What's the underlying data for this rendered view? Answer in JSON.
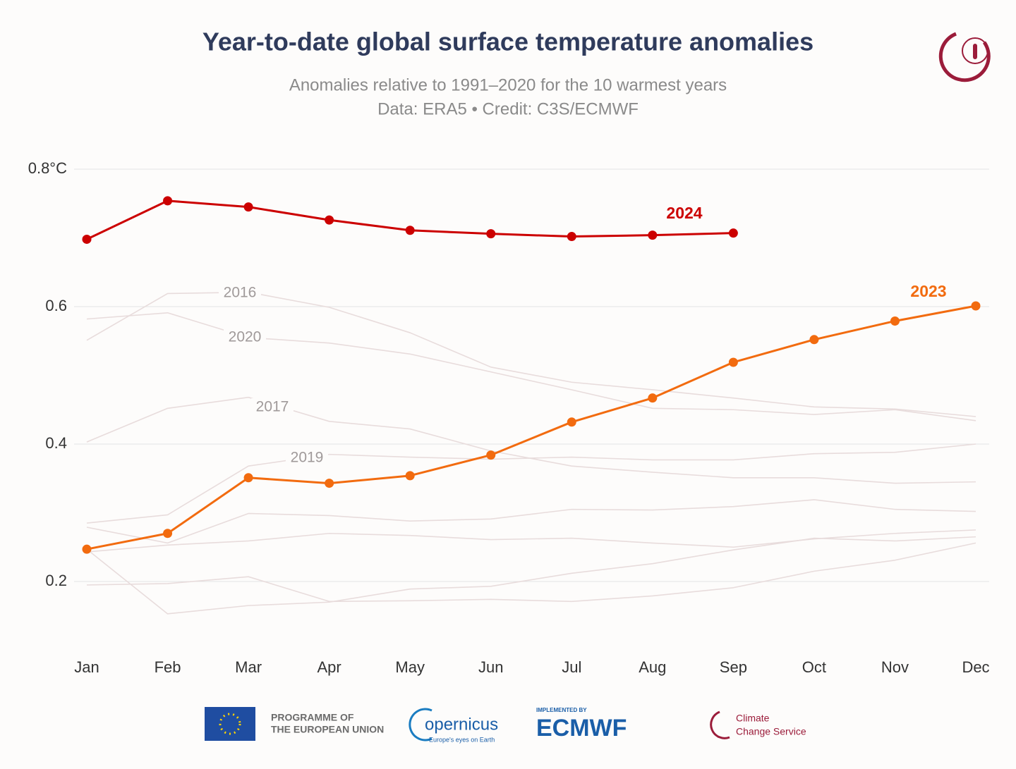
{
  "chart_data": {
    "type": "line",
    "title": "Year-to-date global surface temperature anomalies",
    "subtitle": [
      "Anomalies relative to 1991–2020 for the 10 warmest years",
      "Data: ERA5 • Credit: C3S/ECMWF"
    ],
    "categories": [
      "Jan",
      "Feb",
      "Mar",
      "Apr",
      "May",
      "Jun",
      "Jul",
      "Aug",
      "Sep",
      "Oct",
      "Nov",
      "Dec"
    ],
    "ylim": [
      0.12,
      0.82
    ],
    "yticks": [
      {
        "value": 0.8,
        "label": "0.8°C"
      },
      0.6,
      0.4,
      0.2
    ],
    "grid": true,
    "series": [
      {
        "color": "#e8dcdc",
        "values": [
          0.195,
          0.197,
          0.207,
          0.171,
          0.172,
          0.174,
          0.171,
          0.179,
          0.191,
          0.215,
          0.231,
          0.256
        ]
      },
      {
        "color": "#e8dcdc",
        "values": [
          0.279,
          0.256,
          0.299,
          0.296,
          0.288,
          0.291,
          0.305,
          0.304,
          0.309,
          0.319,
          0.305,
          0.302
        ]
      },
      {
        "color": "#e8dcdc",
        "values": [
          0.243,
          0.253,
          0.259,
          0.27,
          0.267,
          0.261,
          0.263,
          0.256,
          0.25,
          0.262,
          0.27,
          0.275
        ]
      },
      {
        "color": "#e8dcdc",
        "values": [
          0.247,
          0.153,
          0.165,
          0.17,
          0.189,
          0.193,
          0.212,
          0.226,
          0.246,
          0.263,
          0.259,
          0.265
        ]
      },
      {
        "name": "2016",
        "color": "#e8dcdc",
        "values": [
          0.551,
          0.619,
          0.621,
          0.599,
          0.562,
          0.512,
          0.49,
          0.479,
          0.467,
          0.454,
          0.451,
          0.44
        ]
      },
      {
        "name": "2020",
        "color": "#e8dcdc",
        "values": [
          0.582,
          0.591,
          0.555,
          0.547,
          0.531,
          0.505,
          0.479,
          0.452,
          0.45,
          0.443,
          0.45,
          0.434
        ]
      },
      {
        "name": "2017",
        "color": "#e8dcdc",
        "values": [
          0.403,
          0.452,
          0.468,
          0.433,
          0.422,
          0.39,
          0.368,
          0.359,
          0.351,
          0.351,
          0.343,
          0.345
        ]
      },
      {
        "name": "2019",
        "color": "#e8dcdc",
        "values": [
          0.285,
          0.297,
          0.368,
          0.385,
          0.381,
          0.378,
          0.381,
          0.377,
          0.377,
          0.386,
          0.388,
          0.4
        ]
      },
      {
        "name": "2023",
        "color": "#f26b0f",
        "marker": true,
        "values": [
          0.247,
          0.27,
          0.351,
          0.343,
          0.354,
          0.384,
          0.432,
          0.467,
          0.519,
          0.552,
          0.579,
          0.601
        ]
      },
      {
        "name": "2024",
        "color": "#cc0000",
        "marker": true,
        "values": [
          0.698,
          0.754,
          0.745,
          0.726,
          0.711,
          0.706,
          0.702,
          0.704,
          0.707,
          null,
          null,
          null
        ]
      }
    ]
  },
  "footer": {
    "eu": [
      "PROGRAMME OF",
      "THE EUROPEAN UNION"
    ],
    "copernicus": "opernicus",
    "copernicus_tagline": "Europe's eyes on Earth",
    "implemented_by": "IMPLEMENTED BY",
    "ecmwf": "ECMWF",
    "c3s": [
      "Climate",
      "Change Service"
    ]
  }
}
